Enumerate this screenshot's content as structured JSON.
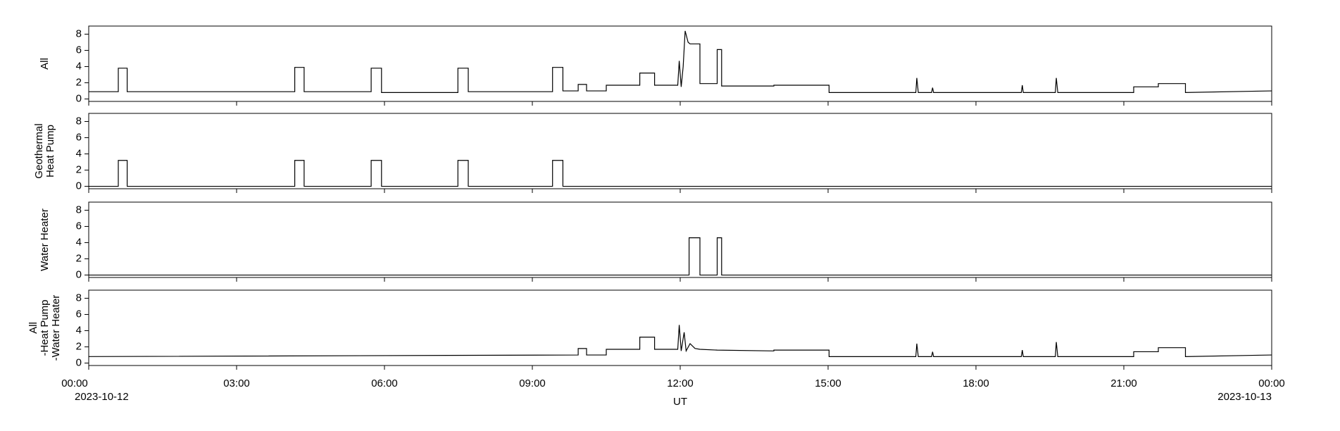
{
  "chart_data": [
    {
      "type": "line",
      "ylabel": [
        "All"
      ],
      "color": "#000000",
      "xlim": [
        0,
        24
      ],
      "ylim": [
        -0.3,
        9
      ],
      "yticks": [
        0,
        2,
        4,
        6,
        8
      ],
      "x": [
        0,
        0.6,
        0.6,
        0.78,
        0.78,
        4.18,
        4.18,
        4.37,
        4.37,
        5.73,
        5.73,
        5.94,
        5.94,
        7.49,
        7.49,
        7.7,
        7.7,
        9.41,
        9.41,
        9.62,
        9.62,
        9.93,
        9.93,
        10.1,
        10.1,
        10.5,
        10.5,
        11.18,
        11.18,
        11.48,
        11.48,
        11.95,
        11.98,
        12.02,
        12.06,
        12.1,
        12.16,
        12.2,
        12.4,
        12.4,
        12.75,
        12.75,
        12.84,
        12.84,
        13.9,
        13.9,
        15.02,
        15.02,
        16.78,
        16.8,
        16.83,
        17.1,
        17.12,
        17.14,
        18.92,
        18.94,
        18.96,
        19.61,
        19.63,
        19.66,
        21.2,
        21.2,
        21.7,
        21.7,
        22.25,
        22.25,
        24
      ],
      "series": [
        {
          "color": "#000000",
          "values": [
            0.9,
            0.9,
            3.8,
            3.8,
            0.9,
            0.9,
            3.9,
            3.9,
            0.9,
            0.9,
            3.8,
            3.8,
            0.8,
            0.8,
            3.8,
            3.8,
            0.9,
            0.9,
            3.9,
            3.9,
            1.0,
            1.0,
            1.8,
            1.8,
            1.0,
            1.0,
            1.7,
            1.7,
            3.2,
            3.2,
            1.7,
            1.7,
            4.7,
            1.5,
            4.0,
            8.4,
            7.0,
            6.8,
            6.8,
            1.9,
            1.9,
            6.1,
            6.1,
            1.6,
            1.6,
            1.7,
            1.7,
            0.8,
            0.8,
            2.6,
            0.8,
            0.8,
            1.4,
            0.8,
            0.8,
            1.7,
            0.8,
            0.8,
            2.6,
            0.8,
            0.8,
            1.5,
            1.5,
            1.9,
            1.9,
            0.8,
            1.0
          ]
        }
      ]
    },
    {
      "type": "line",
      "ylabel": [
        "Geothermal",
        "Heat Pump"
      ],
      "xlim": [
        0,
        24
      ],
      "ylim": [
        -0.3,
        9
      ],
      "yticks": [
        0,
        2,
        4,
        6,
        8
      ],
      "x": [
        0,
        0.6,
        0.6,
        0.78,
        0.78,
        4.18,
        4.18,
        4.37,
        4.37,
        5.73,
        5.73,
        5.94,
        5.94,
        7.49,
        7.49,
        7.7,
        7.7,
        9.41,
        9.41,
        9.62,
        9.62,
        24
      ],
      "series": [
        {
          "color": "#000000",
          "values": [
            0,
            0,
            3.2,
            3.2,
            0,
            0,
            3.2,
            3.2,
            0,
            0,
            3.2,
            3.2,
            0,
            0,
            3.2,
            3.2,
            0,
            0,
            3.2,
            3.2,
            0,
            0
          ]
        }
      ]
    },
    {
      "type": "line",
      "ylabel": [
        "Water Heater"
      ],
      "xlim": [
        0,
        24
      ],
      "ylim": [
        -0.3,
        9
      ],
      "yticks": [
        0,
        2,
        4,
        6,
        8
      ],
      "x": [
        0,
        12.18,
        12.18,
        12.4,
        12.4,
        12.75,
        12.75,
        12.84,
        12.84,
        24
      ],
      "series": [
        {
          "color": "#000000",
          "values": [
            0,
            0,
            4.6,
            4.6,
            0,
            0,
            4.6,
            4.6,
            0,
            0
          ]
        }
      ]
    },
    {
      "type": "line",
      "ylabel": [
        "All",
        "-Heat Pump",
        "-Water Heater"
      ],
      "xlabel": "UT",
      "xlim": [
        0,
        24
      ],
      "ylim": [
        -0.3,
        9
      ],
      "yticks": [
        0,
        2,
        4,
        6,
        8
      ],
      "xticks": [
        {
          "value": 0,
          "label": "00:00"
        },
        {
          "value": 3,
          "label": "03:00"
        },
        {
          "value": 6,
          "label": "06:00"
        },
        {
          "value": 9,
          "label": "09:00"
        },
        {
          "value": 12,
          "label": "12:00"
        },
        {
          "value": 15,
          "label": "15:00"
        },
        {
          "value": 18,
          "label": "18:00"
        },
        {
          "value": 21,
          "label": "21:00"
        },
        {
          "value": 24,
          "label": "00:00"
        }
      ],
      "xdates": [
        {
          "value": 0,
          "label": "2023-10-12"
        },
        {
          "value": 24,
          "label": "2023-10-13"
        }
      ],
      "x": [
        0,
        9.93,
        9.93,
        10.1,
        10.1,
        10.5,
        10.5,
        11.18,
        11.18,
        11.48,
        11.48,
        11.95,
        11.98,
        12.02,
        12.08,
        12.12,
        12.2,
        12.3,
        12.4,
        12.75,
        13.9,
        13.9,
        15.02,
        15.02,
        16.78,
        16.8,
        16.83,
        17.1,
        17.12,
        17.14,
        18.92,
        18.94,
        18.96,
        19.61,
        19.63,
        19.66,
        21.2,
        21.2,
        21.7,
        21.7,
        22.25,
        22.25,
        24
      ],
      "series": [
        {
          "color": "#000000",
          "values": [
            0.8,
            1.0,
            1.8,
            1.8,
            1.0,
            1.0,
            1.7,
            1.7,
            3.2,
            3.2,
            1.7,
            1.7,
            4.7,
            1.5,
            3.8,
            1.5,
            2.4,
            1.8,
            1.7,
            1.6,
            1.5,
            1.6,
            1.6,
            0.8,
            0.8,
            2.4,
            0.8,
            0.8,
            1.4,
            0.8,
            0.8,
            1.6,
            0.8,
            0.8,
            2.6,
            0.8,
            0.8,
            1.4,
            1.4,
            1.9,
            1.9,
            0.8,
            1.0
          ]
        }
      ]
    }
  ]
}
